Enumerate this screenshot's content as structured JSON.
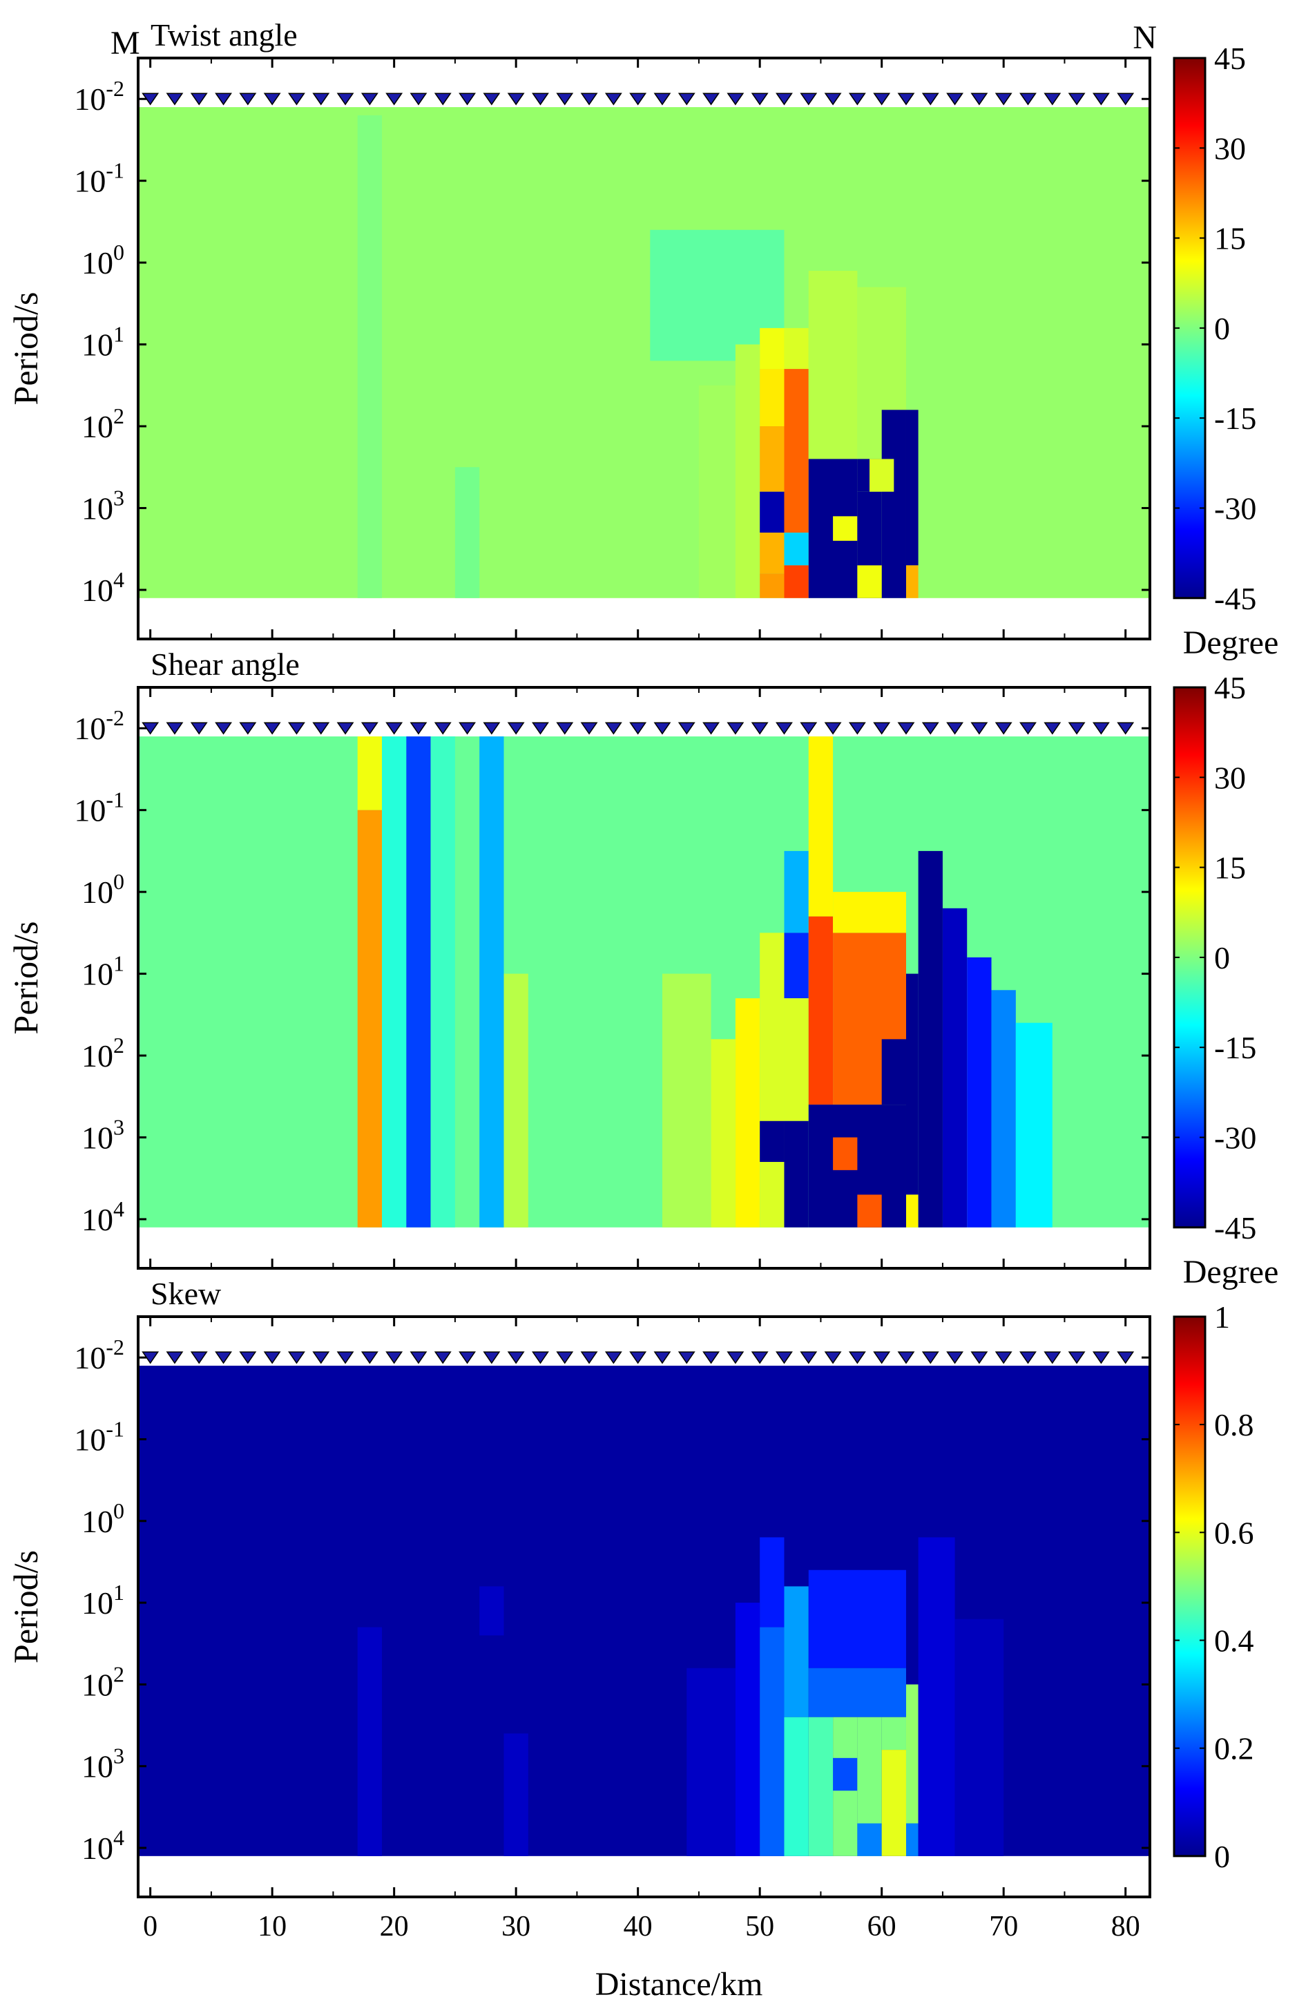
{
  "figure": {
    "endpoint_labels": {
      "start": "M",
      "end": "N"
    },
    "xaxis_label": "Distance/km",
    "x_tick_labels": [
      "0",
      "10",
      "20",
      "30",
      "40",
      "50",
      "60",
      "70",
      "80"
    ]
  },
  "chart_data": [
    {
      "type": "heatmap",
      "title": "Twist angle",
      "xlabel": "Distance/km",
      "ylabel": "Period/s",
      "xlim": [
        -1,
        82
      ],
      "ylim_log10": [
        -2.5,
        4.6
      ],
      "y_log_scale": true,
      "y_tick_labels": [
        "10^-2",
        "10^-1",
        "10^0",
        "10^1",
        "10^2",
        "10^3",
        "10^4"
      ],
      "colorbar": {
        "ticks": [
          "45",
          "30",
          "15",
          "0",
          "-15",
          "-30",
          "-45"
        ],
        "range": [
          -45,
          45
        ],
        "label": "Degree",
        "colormap": "jet"
      },
      "station_count": 41,
      "background_value": 2,
      "data_extent": {
        "x": [
          -1,
          82
        ],
        "log10_period": [
          -1.9,
          4.1
        ]
      },
      "cells": [
        {
          "x": [
            17,
            19
          ],
          "log10_period": [
            -1.8,
            4.1
          ],
          "value": 0
        },
        {
          "x": [
            25,
            27
          ],
          "log10_period": [
            2.5,
            4.1
          ],
          "value": -1
        },
        {
          "x": [
            41,
            52
          ],
          "log10_period": [
            -0.4,
            1.2
          ],
          "value": -3
        },
        {
          "x": [
            45,
            48
          ],
          "log10_period": [
            1.5,
            4.1
          ],
          "value": 3
        },
        {
          "x": [
            48,
            50
          ],
          "log10_period": [
            1.0,
            4.1
          ],
          "value": 5
        },
        {
          "x": [
            50,
            52
          ],
          "log10_period": [
            0.8,
            1.3
          ],
          "value": 10
        },
        {
          "x": [
            50,
            52
          ],
          "log10_period": [
            1.3,
            2.0
          ],
          "value": 13
        },
        {
          "x": [
            50,
            52
          ],
          "log10_period": [
            2.0,
            2.8
          ],
          "value": 18
        },
        {
          "x": [
            50,
            52
          ],
          "log10_period": [
            2.8,
            3.3
          ],
          "value": -42
        },
        {
          "x": [
            50,
            52
          ],
          "log10_period": [
            3.3,
            3.8
          ],
          "value": 18
        },
        {
          "x": [
            50,
            52
          ],
          "log10_period": [
            3.8,
            4.1
          ],
          "value": 20
        },
        {
          "x": [
            52,
            54
          ],
          "log10_period": [
            0.8,
            1.3
          ],
          "value": 8
        },
        {
          "x": [
            52,
            54
          ],
          "log10_period": [
            1.3,
            3.3
          ],
          "value": 25
        },
        {
          "x": [
            52,
            54
          ],
          "log10_period": [
            3.3,
            3.7
          ],
          "value": -15
        },
        {
          "x": [
            52,
            54
          ],
          "log10_period": [
            3.7,
            4.1
          ],
          "value": 28
        },
        {
          "x": [
            54,
            58
          ],
          "log10_period": [
            0.1,
            2.4
          ],
          "value": 5
        },
        {
          "x": [
            58,
            62
          ],
          "log10_period": [
            0.3,
            2.6
          ],
          "value": 4
        },
        {
          "x": [
            54,
            58
          ],
          "log10_period": [
            2.4,
            4.1
          ],
          "value": -48
        },
        {
          "x": [
            56,
            58
          ],
          "log10_period": [
            3.1,
            3.4
          ],
          "value": 10
        },
        {
          "x": [
            58,
            60
          ],
          "log10_period": [
            2.4,
            2.8
          ],
          "value": -48
        },
        {
          "x": [
            58,
            60
          ],
          "log10_period": [
            2.8,
            4.1
          ],
          "value": -48
        },
        {
          "x": [
            60,
            62
          ],
          "log10_period": [
            1.8,
            4.1
          ],
          "value": -48
        },
        {
          "x": [
            60,
            62
          ],
          "log10_period": [
            2.8,
            2.8
          ],
          "value": 8
        },
        {
          "x": [
            58,
            60
          ],
          "log10_period": [
            3.7,
            4.1
          ],
          "value": 10
        },
        {
          "x": [
            62,
            63
          ],
          "log10_period": [
            1.8,
            3.7
          ],
          "value": -48
        },
        {
          "x": [
            62,
            63
          ],
          "log10_period": [
            3.7,
            4.1
          ],
          "value": 18
        },
        {
          "x": [
            59,
            61
          ],
          "log10_period": [
            2.4,
            2.8
          ],
          "value": 8
        }
      ]
    },
    {
      "type": "heatmap",
      "title": "Shear angle",
      "xlabel": "Distance/km",
      "ylabel": "Period/s",
      "xlim": [
        -1,
        82
      ],
      "ylim_log10": [
        -2.5,
        4.6
      ],
      "y_log_scale": true,
      "y_tick_labels": [
        "10^-2",
        "10^-1",
        "10^0",
        "10^1",
        "10^2",
        "10^3",
        "10^4"
      ],
      "colorbar": {
        "ticks": [
          "45",
          "30",
          "15",
          "0",
          "-15",
          "-30",
          "-45"
        ],
        "range": [
          -45,
          45
        ],
        "label": "Degree",
        "colormap": "jet"
      },
      "station_count": 41,
      "background_value": -2,
      "data_extent": {
        "x": [
          -1,
          82
        ],
        "log10_period": [
          -1.9,
          4.1
        ]
      },
      "cells": [
        {
          "x": [
            17,
            19
          ],
          "log10_period": [
            -1.9,
            -1.0
          ],
          "value": 10
        },
        {
          "x": [
            17,
            19
          ],
          "log10_period": [
            -1.0,
            4.1
          ],
          "value": 20
        },
        {
          "x": [
            19,
            21
          ],
          "log10_period": [
            -1.9,
            4.1
          ],
          "value": -8
        },
        {
          "x": [
            21,
            23
          ],
          "log10_period": [
            -1.9,
            4.1
          ],
          "value": -28
        },
        {
          "x": [
            23,
            25
          ],
          "log10_period": [
            -1.9,
            4.1
          ],
          "value": -6
        },
        {
          "x": [
            27,
            29
          ],
          "log10_period": [
            -1.9,
            4.1
          ],
          "value": -18
        },
        {
          "x": [
            29,
            31
          ],
          "log10_period": [
            1.0,
            4.1
          ],
          "value": 5
        },
        {
          "x": [
            42,
            46
          ],
          "log10_period": [
            1.0,
            4.1
          ],
          "value": 4
        },
        {
          "x": [
            46,
            48
          ],
          "log10_period": [
            1.8,
            4.1
          ],
          "value": 8
        },
        {
          "x": [
            48,
            50
          ],
          "log10_period": [
            1.3,
            4.1
          ],
          "value": 12
        },
        {
          "x": [
            50,
            52
          ],
          "log10_period": [
            0.5,
            4.1
          ],
          "value": 8
        },
        {
          "x": [
            50,
            52
          ],
          "log10_period": [
            2.8,
            3.3
          ],
          "value": -48
        },
        {
          "x": [
            52,
            54
          ],
          "log10_period": [
            -0.5,
            0.5
          ],
          "value": -18
        },
        {
          "x": [
            52,
            54
          ],
          "log10_period": [
            0.5,
            1.3
          ],
          "value": -30
        },
        {
          "x": [
            52,
            54
          ],
          "log10_period": [
            1.3,
            2.8
          ],
          "value": 8
        },
        {
          "x": [
            52,
            54
          ],
          "log10_period": [
            2.8,
            4.1
          ],
          "value": -48
        },
        {
          "x": [
            54,
            56
          ],
          "log10_period": [
            -1.9,
            0.3
          ],
          "value": 12
        },
        {
          "x": [
            54,
            56
          ],
          "log10_period": [
            0.3,
            2.6
          ],
          "value": 28
        },
        {
          "x": [
            56,
            62
          ],
          "log10_period": [
            0.5,
            2.6
          ],
          "value": 25
        },
        {
          "x": [
            56,
            62
          ],
          "log10_period": [
            0.0,
            0.5
          ],
          "value": 12
        },
        {
          "x": [
            54,
            62
          ],
          "log10_period": [
            2.6,
            4.1
          ],
          "value": -48
        },
        {
          "x": [
            56,
            58
          ],
          "log10_period": [
            3.0,
            3.4
          ],
          "value": 26
        },
        {
          "x": [
            58,
            60
          ],
          "log10_period": [
            3.7,
            4.1
          ],
          "value": 26
        },
        {
          "x": [
            60,
            62
          ],
          "log10_period": [
            1.8,
            2.6
          ],
          "value": -48
        },
        {
          "x": [
            62,
            63
          ],
          "log10_period": [
            1.0,
            3.7
          ],
          "value": -48
        },
        {
          "x": [
            62,
            63
          ],
          "log10_period": [
            3.7,
            4.1
          ],
          "value": 12
        },
        {
          "x": [
            63,
            65
          ],
          "log10_period": [
            -0.5,
            4.1
          ],
          "value": -48
        },
        {
          "x": [
            65,
            67
          ],
          "log10_period": [
            0.2,
            4.1
          ],
          "value": -40
        },
        {
          "x": [
            67,
            69
          ],
          "log10_period": [
            0.8,
            4.1
          ],
          "value": -32
        },
        {
          "x": [
            69,
            71
          ],
          "log10_period": [
            1.2,
            4.1
          ],
          "value": -22
        },
        {
          "x": [
            71,
            74
          ],
          "log10_period": [
            1.6,
            4.1
          ],
          "value": -12
        }
      ]
    },
    {
      "type": "heatmap",
      "title": "Skew",
      "xlabel": "Distance/km",
      "ylabel": "Period/s",
      "xlim": [
        -1,
        82
      ],
      "ylim_log10": [
        -2.5,
        4.6
      ],
      "y_log_scale": true,
      "y_tick_labels": [
        "10^-2",
        "10^-1",
        "10^0",
        "10^1",
        "10^2",
        "10^3",
        "10^4"
      ],
      "colorbar": {
        "ticks": [
          "1",
          "0.8",
          "0.6",
          "0.4",
          "0.2",
          "0"
        ],
        "range": [
          0,
          1
        ],
        "label": "",
        "colormap": "jet"
      },
      "station_count": 41,
      "background_value": 0.02,
      "data_extent": {
        "x": [
          -1,
          82
        ],
        "log10_period": [
          -1.9,
          4.1
        ]
      },
      "cells": [
        {
          "x": [
            17,
            19
          ],
          "log10_period": [
            1.3,
            4.1
          ],
          "value": 0.06
        },
        {
          "x": [
            27,
            29
          ],
          "log10_period": [
            0.8,
            1.4
          ],
          "value": 0.06
        },
        {
          "x": [
            29,
            31
          ],
          "log10_period": [
            2.6,
            4.1
          ],
          "value": 0.06
        },
        {
          "x": [
            44,
            48
          ],
          "log10_period": [
            1.8,
            4.1
          ],
          "value": 0.06
        },
        {
          "x": [
            48,
            50
          ],
          "log10_period": [
            1.0,
            4.1
          ],
          "value": 0.1
        },
        {
          "x": [
            50,
            52
          ],
          "log10_period": [
            0.2,
            1.3
          ],
          "value": 0.15
        },
        {
          "x": [
            50,
            52
          ],
          "log10_period": [
            1.3,
            4.1
          ],
          "value": 0.22
        },
        {
          "x": [
            52,
            54
          ],
          "log10_period": [
            0.8,
            2.4
          ],
          "value": 0.28
        },
        {
          "x": [
            52,
            54
          ],
          "log10_period": [
            2.4,
            4.1
          ],
          "value": 0.42
        },
        {
          "x": [
            54,
            62
          ],
          "log10_period": [
            0.6,
            1.8
          ],
          "value": 0.15
        },
        {
          "x": [
            54,
            62
          ],
          "log10_period": [
            1.8,
            2.4
          ],
          "value": 0.22
        },
        {
          "x": [
            54,
            56
          ],
          "log10_period": [
            2.4,
            4.1
          ],
          "value": 0.45
        },
        {
          "x": [
            56,
            58
          ],
          "log10_period": [
            2.4,
            4.1
          ],
          "value": 0.5
        },
        {
          "x": [
            56,
            58
          ],
          "log10_period": [
            2.9,
            3.3
          ],
          "value": 0.2
        },
        {
          "x": [
            58,
            60
          ],
          "log10_period": [
            2.4,
            4.1
          ],
          "value": 0.5
        },
        {
          "x": [
            58,
            60
          ],
          "log10_period": [
            3.7,
            4.1
          ],
          "value": 0.25
        },
        {
          "x": [
            60,
            62
          ],
          "log10_period": [
            2.8,
            4.1
          ],
          "value": 0.6
        },
        {
          "x": [
            60,
            62
          ],
          "log10_period": [
            2.4,
            2.8
          ],
          "value": 0.5
        },
        {
          "x": [
            62,
            63
          ],
          "log10_period": [
            2.0,
            3.7
          ],
          "value": 0.52
        },
        {
          "x": [
            62,
            63
          ],
          "log10_period": [
            3.7,
            4.1
          ],
          "value": 0.25
        },
        {
          "x": [
            63,
            66
          ],
          "log10_period": [
            0.2,
            4.1
          ],
          "value": 0.08
        },
        {
          "x": [
            66,
            70
          ],
          "log10_period": [
            1.2,
            4.1
          ],
          "value": 0.05
        }
      ]
    }
  ]
}
